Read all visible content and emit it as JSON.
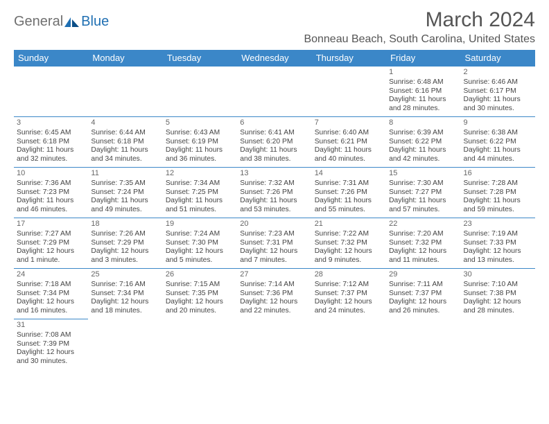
{
  "brand": {
    "a": "General",
    "b": "Blue"
  },
  "title": "March 2024",
  "subtitle": "Bonneau Beach, South Carolina, United States",
  "colors": {
    "header_bg": "#3b87c8",
    "header_fg": "#ffffff",
    "rule": "#3b87c8",
    "title_fg": "#555555",
    "text_fg": "#444444",
    "logo_gray": "#6f6f6f",
    "logo_blue": "#1f6fb2"
  },
  "weekdays": [
    "Sunday",
    "Monday",
    "Tuesday",
    "Wednesday",
    "Thursday",
    "Friday",
    "Saturday"
  ],
  "weeks": [
    [
      null,
      null,
      null,
      null,
      null,
      {
        "n": "1",
        "sr": "6:48 AM",
        "ss": "6:16 PM",
        "dl": "11 hours and 28 minutes."
      },
      {
        "n": "2",
        "sr": "6:46 AM",
        "ss": "6:17 PM",
        "dl": "11 hours and 30 minutes."
      }
    ],
    [
      {
        "n": "3",
        "sr": "6:45 AM",
        "ss": "6:18 PM",
        "dl": "11 hours and 32 minutes."
      },
      {
        "n": "4",
        "sr": "6:44 AM",
        "ss": "6:18 PM",
        "dl": "11 hours and 34 minutes."
      },
      {
        "n": "5",
        "sr": "6:43 AM",
        "ss": "6:19 PM",
        "dl": "11 hours and 36 minutes."
      },
      {
        "n": "6",
        "sr": "6:41 AM",
        "ss": "6:20 PM",
        "dl": "11 hours and 38 minutes."
      },
      {
        "n": "7",
        "sr": "6:40 AM",
        "ss": "6:21 PM",
        "dl": "11 hours and 40 minutes."
      },
      {
        "n": "8",
        "sr": "6:39 AM",
        "ss": "6:22 PM",
        "dl": "11 hours and 42 minutes."
      },
      {
        "n": "9",
        "sr": "6:38 AM",
        "ss": "6:22 PM",
        "dl": "11 hours and 44 minutes."
      }
    ],
    [
      {
        "n": "10",
        "sr": "7:36 AM",
        "ss": "7:23 PM",
        "dl": "11 hours and 46 minutes."
      },
      {
        "n": "11",
        "sr": "7:35 AM",
        "ss": "7:24 PM",
        "dl": "11 hours and 49 minutes."
      },
      {
        "n": "12",
        "sr": "7:34 AM",
        "ss": "7:25 PM",
        "dl": "11 hours and 51 minutes."
      },
      {
        "n": "13",
        "sr": "7:32 AM",
        "ss": "7:26 PM",
        "dl": "11 hours and 53 minutes."
      },
      {
        "n": "14",
        "sr": "7:31 AM",
        "ss": "7:26 PM",
        "dl": "11 hours and 55 minutes."
      },
      {
        "n": "15",
        "sr": "7:30 AM",
        "ss": "7:27 PM",
        "dl": "11 hours and 57 minutes."
      },
      {
        "n": "16",
        "sr": "7:28 AM",
        "ss": "7:28 PM",
        "dl": "11 hours and 59 minutes."
      }
    ],
    [
      {
        "n": "17",
        "sr": "7:27 AM",
        "ss": "7:29 PM",
        "dl": "12 hours and 1 minute."
      },
      {
        "n": "18",
        "sr": "7:26 AM",
        "ss": "7:29 PM",
        "dl": "12 hours and 3 minutes."
      },
      {
        "n": "19",
        "sr": "7:24 AM",
        "ss": "7:30 PM",
        "dl": "12 hours and 5 minutes."
      },
      {
        "n": "20",
        "sr": "7:23 AM",
        "ss": "7:31 PM",
        "dl": "12 hours and 7 minutes."
      },
      {
        "n": "21",
        "sr": "7:22 AM",
        "ss": "7:32 PM",
        "dl": "12 hours and 9 minutes."
      },
      {
        "n": "22",
        "sr": "7:20 AM",
        "ss": "7:32 PM",
        "dl": "12 hours and 11 minutes."
      },
      {
        "n": "23",
        "sr": "7:19 AM",
        "ss": "7:33 PM",
        "dl": "12 hours and 13 minutes."
      }
    ],
    [
      {
        "n": "24",
        "sr": "7:18 AM",
        "ss": "7:34 PM",
        "dl": "12 hours and 16 minutes."
      },
      {
        "n": "25",
        "sr": "7:16 AM",
        "ss": "7:34 PM",
        "dl": "12 hours and 18 minutes."
      },
      {
        "n": "26",
        "sr": "7:15 AM",
        "ss": "7:35 PM",
        "dl": "12 hours and 20 minutes."
      },
      {
        "n": "27",
        "sr": "7:14 AM",
        "ss": "7:36 PM",
        "dl": "12 hours and 22 minutes."
      },
      {
        "n": "28",
        "sr": "7:12 AM",
        "ss": "7:37 PM",
        "dl": "12 hours and 24 minutes."
      },
      {
        "n": "29",
        "sr": "7:11 AM",
        "ss": "7:37 PM",
        "dl": "12 hours and 26 minutes."
      },
      {
        "n": "30",
        "sr": "7:10 AM",
        "ss": "7:38 PM",
        "dl": "12 hours and 28 minutes."
      }
    ],
    [
      {
        "n": "31",
        "sr": "7:08 AM",
        "ss": "7:39 PM",
        "dl": "12 hours and 30 minutes."
      },
      null,
      null,
      null,
      null,
      null,
      null
    ]
  ],
  "labels": {
    "sunrise": "Sunrise:",
    "sunset": "Sunset:",
    "daylight": "Daylight:"
  }
}
